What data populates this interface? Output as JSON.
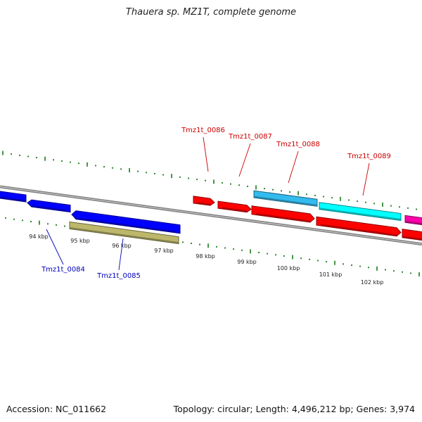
{
  "title": "Thauera sp. MZ1T, complete genome",
  "accession": "Accession: NC_011662",
  "topology": "Topology: circular; Length: 4,496,212 bp; Genes: 3,974",
  "colors": {
    "backbone": "#808080",
    "tick": "#1a7a1a",
    "forward_label": "#cc0000",
    "reverse_label": "#0000bb",
    "blue": "#0000ff",
    "olive": "#bdb76b",
    "red": "#ff0000",
    "skyblue": "#33bbee",
    "cyan": "#00ffff",
    "magenta": "#ff00aa"
  },
  "ruler_labels": [
    "94 kbp",
    "95 kbp",
    "96 kbp",
    "97 kbp",
    "98 kbp",
    "99 kbp",
    "100 kbp",
    "101 kbp",
    "102 kbp"
  ],
  "gene_labels": {
    "forward": [
      "Tmz1t_0086",
      "Tmz1t_0087",
      "Tmz1t_0088",
      "Tmz1t_0089"
    ],
    "reverse": [
      "Tmz1t_0084",
      "Tmz1t_0085"
    ]
  }
}
